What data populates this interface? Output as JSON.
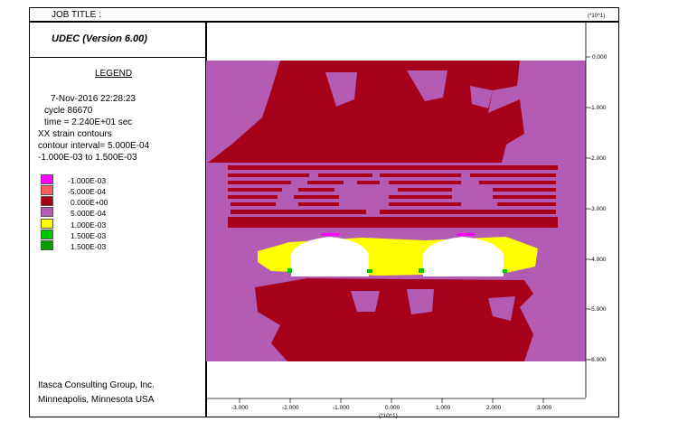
{
  "header": {
    "job_title_label": "JOB TITLE :",
    "axis_multiplier": "(*10^1)"
  },
  "version": "UDEC (Version 6.00)",
  "legend": {
    "heading": "LEGEND",
    "date_time": "7-Nov-2016  22:28:23",
    "cycle": "cycle    86670",
    "time": "time  =  2.240E+01 sec",
    "plot_type": "XX strain contours",
    "interval": "contour interval= 5.000E-04",
    "range": "-1.000E-03 to  1.500E-03",
    "levels": [
      {
        "label": "-1.000E-03",
        "color": "#ff00ff"
      },
      {
        "label": "-5.000E-04",
        "color": "#ff5c5c"
      },
      {
        "label": "0.000E+00",
        "color": "#a6001a"
      },
      {
        "label": "5.000E-04",
        "color": "#b45cb4"
      },
      {
        "label": "1.000E-03",
        "color": "#ffff00"
      },
      {
        "label": "1.500E-03",
        "color": "#00c800"
      },
      {
        "label": "1.500E-03",
        "color": "#00a000"
      }
    ]
  },
  "footer": {
    "company": "Itasca Consulting Group, Inc.",
    "location": "Minneapolis, Minnesota  USA"
  },
  "y_axis": {
    "ticks": [
      "0.000",
      "-1.000",
      "-2.000",
      "-3.000",
      "-4.000",
      "-5.000",
      "-6.000"
    ],
    "multiplier": "(*10^1)"
  },
  "x_axis": {
    "ticks": [
      "-3.000",
      "-2.000",
      "-1.000",
      "0.000",
      "1.000",
      "2.000",
      "3.000"
    ],
    "multiplier": "(*10^1)"
  },
  "colors": {
    "purple": "#b45cb4",
    "dark_red": "#a6001a",
    "yellow": "#ffff00",
    "green": "#00c800",
    "magenta": "#ff00ff",
    "light_red": "#ff5c5c"
  }
}
